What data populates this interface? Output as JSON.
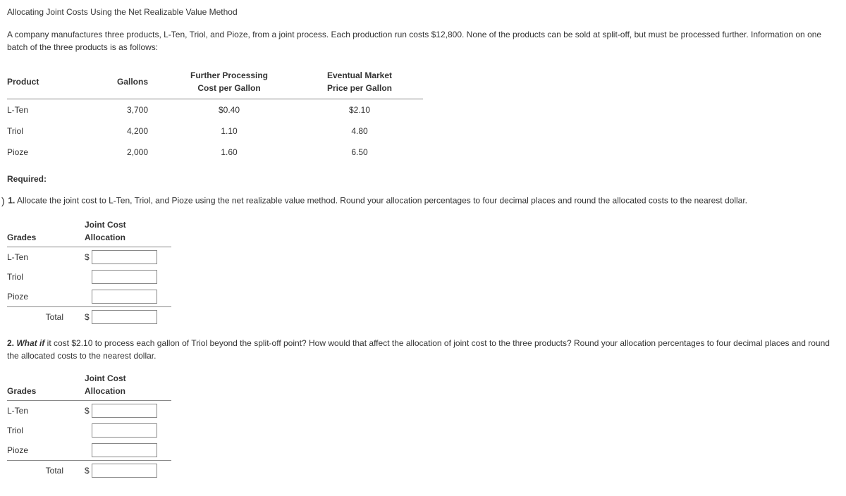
{
  "title": "Allocating Joint Costs Using the Net Realizable Value Method",
  "intro": "A company manufactures three products, L-Ten, Triol, and Pioze, from a joint process. Each production run costs $12,800. None of the products can be sold at split-off, but must be processed further. Information on one batch of the three products is as follows:",
  "dataTable": {
    "headers": {
      "product": "Product",
      "gallons": "Gallons",
      "cost_line1": "Further Processing",
      "cost_line2": "Cost per Gallon",
      "price_line1": "Eventual Market",
      "price_line2": "Price per Gallon"
    },
    "rows": [
      {
        "product": "L-Ten",
        "gallons": "3,700",
        "cost": "$0.40",
        "price": "$2.10"
      },
      {
        "product": "Triol",
        "gallons": "4,200",
        "cost": "1.10",
        "price": "4.80"
      },
      {
        "product": "Pioze",
        "gallons": "2,000",
        "cost": "1.60",
        "price": "6.50"
      }
    ]
  },
  "requiredLabel": "Required:",
  "q1": {
    "num": "1.",
    "text": " Allocate the joint cost to L-Ten, Triol, and Pioze using the net realizable value method. Round your allocation percentages to four decimal places and round the allocated costs to the nearest dollar."
  },
  "q2": {
    "num": "2.",
    "whatif": " What if",
    "text": " it cost $2.10 to process each gallon of Triol beyond the split-off point? How would that affect the allocation of joint cost to the three products? Round your allocation percentages to four decimal places and round the allocated costs to the nearest dollar."
  },
  "allocTable": {
    "headers": {
      "grades": "Grades",
      "jc_line1": "Joint Cost",
      "jc_line2": "Allocation"
    },
    "rows": [
      "L-Ten",
      "Triol",
      "Pioze"
    ],
    "totalLabel": "Total",
    "dollar": "$"
  }
}
